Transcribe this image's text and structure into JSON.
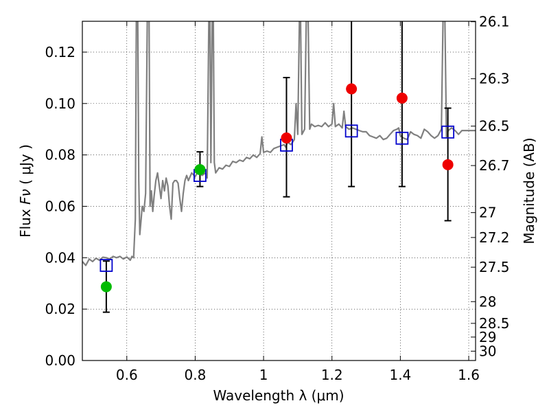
{
  "chart_data": {
    "type": "scatter",
    "xlabel": "Wavelength  λ (μm)",
    "ylabel_prefix": "Flux  ",
    "ylabel_symbol": "Fν",
    "ylabel_suffix": "  ( μJy )",
    "ylabel_right": "Magnitude (AB)",
    "xlim": [
      0.47,
      1.62
    ],
    "ylim": [
      0.0,
      0.132
    ],
    "grid": true,
    "x_ticks": [
      {
        "v": 0.6,
        "label": "0.6"
      },
      {
        "v": 0.8,
        "label": "0.8"
      },
      {
        "v": 1.0,
        "label": "1"
      },
      {
        "v": 1.2,
        "label": "1.2"
      },
      {
        "v": 1.4,
        "label": "1.4"
      },
      {
        "v": 1.6,
        "label": "1.6"
      }
    ],
    "y_ticks": [
      {
        "v": 0.0,
        "label": "0.00"
      },
      {
        "v": 0.02,
        "label": "0.02"
      },
      {
        "v": 0.04,
        "label": "0.04"
      },
      {
        "v": 0.06,
        "label": "0.06"
      },
      {
        "v": 0.08,
        "label": "0.08"
      },
      {
        "v": 0.1,
        "label": "0.10"
      },
      {
        "v": 0.12,
        "label": "0.12"
      }
    ],
    "magnitude_ticks": [
      {
        "v": 26.1,
        "label": "26.1"
      },
      {
        "v": 26.3,
        "label": "26.3"
      },
      {
        "v": 26.5,
        "label": "26.5"
      },
      {
        "v": 26.7,
        "label": "26.7"
      },
      {
        "v": 27.0,
        "label": "27"
      },
      {
        "v": 27.2,
        "label": "27.2"
      },
      {
        "v": 27.5,
        "label": "27.5"
      },
      {
        "v": 28.0,
        "label": "28"
      },
      {
        "v": 28.5,
        "label": "28.5"
      },
      {
        "v": 29.0,
        "label": "29"
      },
      {
        "v": 30.0,
        "label": "30"
      }
    ],
    "template_spectrum": {
      "name": "model SED",
      "color": "#808080",
      "points": [
        [
          0.47,
          0.0385
        ],
        [
          0.48,
          0.037
        ],
        [
          0.49,
          0.0395
        ],
        [
          0.5,
          0.0385
        ],
        [
          0.51,
          0.0398
        ],
        [
          0.52,
          0.039
        ],
        [
          0.53,
          0.0402
        ],
        [
          0.54,
          0.04
        ],
        [
          0.55,
          0.0395
        ],
        [
          0.56,
          0.0405
        ],
        [
          0.57,
          0.04
        ],
        [
          0.58,
          0.0405
        ],
        [
          0.59,
          0.0395
        ],
        [
          0.6,
          0.0403
        ],
        [
          0.61,
          0.039
        ],
        [
          0.615,
          0.0405
        ],
        [
          0.62,
          0.04
        ],
        [
          0.625,
          0.055
        ],
        [
          0.628,
          0.135
        ],
        [
          0.632,
          0.135
        ],
        [
          0.635,
          0.07
        ],
        [
          0.638,
          0.049
        ],
        [
          0.642,
          0.055
        ],
        [
          0.645,
          0.06
        ],
        [
          0.65,
          0.058
        ],
        [
          0.655,
          0.065
        ],
        [
          0.66,
          0.135
        ],
        [
          0.665,
          0.135
        ],
        [
          0.668,
          0.06
        ],
        [
          0.672,
          0.066
        ],
        [
          0.676,
          0.058
        ],
        [
          0.68,
          0.064
        ],
        [
          0.685,
          0.07
        ],
        [
          0.69,
          0.073
        ],
        [
          0.695,
          0.068
        ],
        [
          0.7,
          0.063
        ],
        [
          0.705,
          0.07
        ],
        [
          0.71,
          0.066
        ],
        [
          0.715,
          0.071
        ],
        [
          0.72,
          0.068
        ],
        [
          0.725,
          0.06
        ],
        [
          0.73,
          0.055
        ],
        [
          0.735,
          0.069
        ],
        [
          0.74,
          0.07
        ],
        [
          0.745,
          0.07
        ],
        [
          0.75,
          0.069
        ],
        [
          0.755,
          0.063
        ],
        [
          0.76,
          0.058
        ],
        [
          0.765,
          0.065
        ],
        [
          0.77,
          0.07
        ],
        [
          0.775,
          0.072
        ],
        [
          0.78,
          0.07
        ],
        [
          0.79,
          0.073
        ],
        [
          0.8,
          0.0715
        ],
        [
          0.81,
          0.074
        ],
        [
          0.82,
          0.072
        ],
        [
          0.83,
          0.073
        ],
        [
          0.835,
          0.071
        ],
        [
          0.84,
          0.135
        ],
        [
          0.843,
          0.135
        ],
        [
          0.846,
          0.077
        ],
        [
          0.85,
          0.135
        ],
        [
          0.853,
          0.135
        ],
        [
          0.856,
          0.077
        ],
        [
          0.86,
          0.073
        ],
        [
          0.87,
          0.075
        ],
        [
          0.88,
          0.0745
        ],
        [
          0.89,
          0.076
        ],
        [
          0.9,
          0.0755
        ],
        [
          0.91,
          0.0775
        ],
        [
          0.92,
          0.077
        ],
        [
          0.93,
          0.078
        ],
        [
          0.94,
          0.0775
        ],
        [
          0.95,
          0.079
        ],
        [
          0.96,
          0.0785
        ],
        [
          0.97,
          0.08
        ],
        [
          0.98,
          0.079
        ],
        [
          0.99,
          0.0805
        ],
        [
          0.995,
          0.087
        ],
        [
          1.0,
          0.081
        ],
        [
          1.01,
          0.0815
        ],
        [
          1.02,
          0.081
        ],
        [
          1.03,
          0.0825
        ],
        [
          1.04,
          0.083
        ],
        [
          1.05,
          0.0835
        ],
        [
          1.06,
          0.084
        ],
        [
          1.065,
          0.083
        ],
        [
          1.07,
          0.085
        ],
        [
          1.08,
          0.084
        ],
        [
          1.09,
          0.086
        ],
        [
          1.095,
          0.1
        ],
        [
          1.1,
          0.088
        ],
        [
          1.105,
          0.135
        ],
        [
          1.108,
          0.135
        ],
        [
          1.112,
          0.088
        ],
        [
          1.12,
          0.09
        ],
        [
          1.125,
          0.135
        ],
        [
          1.13,
          0.135
        ],
        [
          1.135,
          0.09
        ],
        [
          1.14,
          0.092
        ],
        [
          1.15,
          0.091
        ],
        [
          1.16,
          0.0915
        ],
        [
          1.17,
          0.091
        ],
        [
          1.18,
          0.0925
        ],
        [
          1.19,
          0.091
        ],
        [
          1.2,
          0.092
        ],
        [
          1.205,
          0.1
        ],
        [
          1.21,
          0.091
        ],
        [
          1.22,
          0.092
        ],
        [
          1.23,
          0.0905
        ],
        [
          1.235,
          0.097
        ],
        [
          1.24,
          0.091
        ],
        [
          1.25,
          0.09
        ],
        [
          1.26,
          0.0905
        ],
        [
          1.27,
          0.09
        ],
        [
          1.28,
          0.0895
        ],
        [
          1.29,
          0.089
        ],
        [
          1.3,
          0.089
        ],
        [
          1.31,
          0.0875
        ],
        [
          1.32,
          0.087
        ],
        [
          1.33,
          0.0865
        ],
        [
          1.34,
          0.0875
        ],
        [
          1.35,
          0.086
        ],
        [
          1.36,
          0.0865
        ],
        [
          1.37,
          0.088
        ],
        [
          1.38,
          0.0895
        ],
        [
          1.39,
          0.09
        ],
        [
          1.395,
          0.0905
        ],
        [
          1.4,
          0.0875
        ],
        [
          1.41,
          0.0865
        ],
        [
          1.42,
          0.086
        ],
        [
          1.43,
          0.089
        ],
        [
          1.44,
          0.088
        ],
        [
          1.45,
          0.0875
        ],
        [
          1.46,
          0.0865
        ],
        [
          1.47,
          0.09
        ],
        [
          1.48,
          0.089
        ],
        [
          1.49,
          0.0875
        ],
        [
          1.5,
          0.0865
        ],
        [
          1.51,
          0.0875
        ],
        [
          1.52,
          0.09
        ],
        [
          1.525,
          0.135
        ],
        [
          1.53,
          0.135
        ],
        [
          1.535,
          0.087
        ],
        [
          1.54,
          0.0895
        ],
        [
          1.55,
          0.0905
        ],
        [
          1.56,
          0.0895
        ],
        [
          1.57,
          0.088
        ],
        [
          1.58,
          0.0895
        ],
        [
          1.59,
          0.0895
        ],
        [
          1.6,
          0.0895
        ],
        [
          1.61,
          0.0895
        ],
        [
          1.62,
          0.0895
        ]
      ]
    },
    "model_photometry": {
      "name": "model photometry",
      "marker": "open-square",
      "color": "#0000cc",
      "points": [
        {
          "x": 0.54,
          "y": 0.037
        },
        {
          "x": 0.814,
          "y": 0.072
        },
        {
          "x": 1.067,
          "y": 0.0838
        },
        {
          "x": 1.257,
          "y": 0.0893
        },
        {
          "x": 1.405,
          "y": 0.0865
        },
        {
          "x": 1.539,
          "y": 0.0889
        }
      ]
    },
    "observed_photometry": {
      "name": "observed photometry",
      "points": [
        {
          "x": 0.54,
          "y": 0.0287,
          "err_low": 0.0188,
          "err_high": 0.0387,
          "color": "#00bb00"
        },
        {
          "x": 0.814,
          "y": 0.0743,
          "err_low": 0.0677,
          "err_high": 0.0812,
          "color": "#00bb00"
        },
        {
          "x": 1.067,
          "y": 0.0866,
          "err_low": 0.0637,
          "err_high": 0.1101,
          "color": "#ee0000"
        },
        {
          "x": 1.257,
          "y": 0.1057,
          "err_low": 0.0677,
          "err_high": 0.133,
          "color": "#ee0000"
        },
        {
          "x": 1.405,
          "y": 0.1021,
          "err_low": 0.0677,
          "err_high": 0.133,
          "color": "#ee0000"
        },
        {
          "x": 1.539,
          "y": 0.0762,
          "err_low": 0.0544,
          "err_high": 0.0982,
          "color": "#ee0000"
        }
      ]
    }
  }
}
